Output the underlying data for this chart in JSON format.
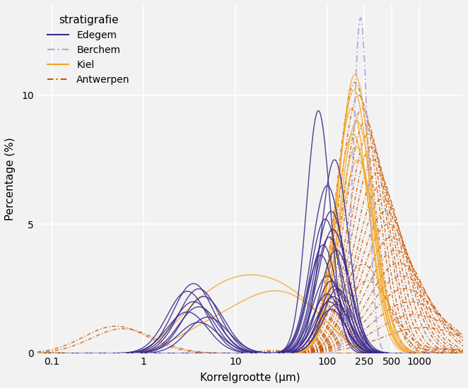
{
  "title": "",
  "xlabel": "Korrelgrootte (μm)",
  "ylabel": "Percentage (%)",
  "legend_title": "stratigrafie",
  "legend_entries": [
    "Edegem",
    "Berchem",
    "Kiel",
    "Antwerpen"
  ],
  "colors": {
    "Edegem": "#3B2A8C",
    "Berchem": "#B0A8D8",
    "Kiel": "#F5A623",
    "Antwerpen": "#CC5500"
  },
  "xlim": [
    0.07,
    3000
  ],
  "ylim": [
    0,
    13.5
  ],
  "yticks": [
    0,
    5,
    10
  ],
  "xtick_labels": [
    "0.1",
    "1",
    "10",
    "100",
    "250",
    "500",
    "1000"
  ],
  "xtick_vals": [
    0.1,
    1,
    10,
    100,
    250,
    500,
    1000
  ],
  "background_color": "#f2f2f2",
  "panel_color": "#f2f2f2",
  "grid_color": "#ffffff"
}
